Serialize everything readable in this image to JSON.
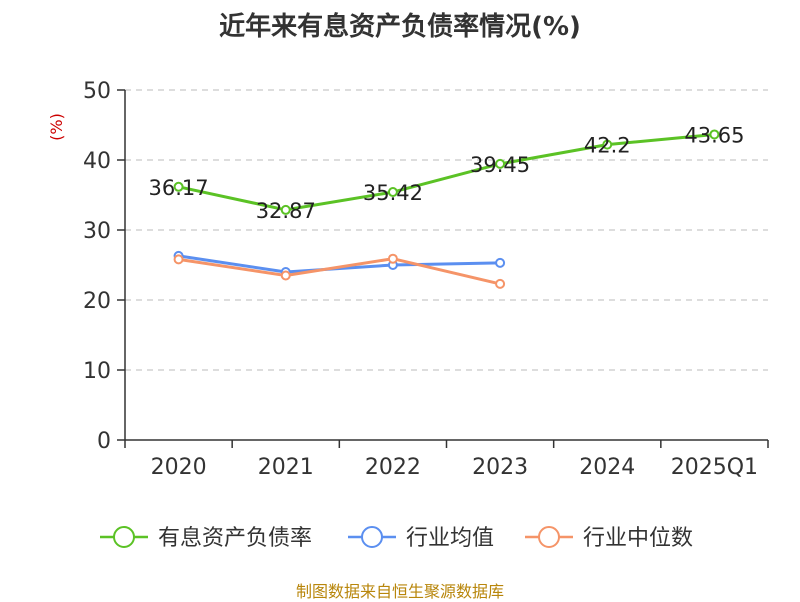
{
  "title": "近年来有息资产负债率情况(%)",
  "source": "制图数据来自恒生聚源数据库",
  "chart_data": {
    "type": "line",
    "title": "近年来有息资产负债率情况(%)",
    "ylabel": "(%)",
    "xlabel": "",
    "ylim": [
      0,
      50
    ],
    "yticks": [
      0,
      10,
      20,
      30,
      40,
      50
    ],
    "categories": [
      "2020",
      "2021",
      "2022",
      "2023",
      "2024",
      "2025Q1"
    ],
    "grid": true,
    "legend_position": "bottom",
    "series": [
      {
        "name": "有息资产负债率",
        "color": "#5bc225",
        "values": [
          36.17,
          32.87,
          35.42,
          39.45,
          42.2,
          43.65
        ],
        "labels": [
          "36.17",
          "32.87",
          "35.42",
          "39.45",
          "42.2",
          "43.65"
        ]
      },
      {
        "name": "行业均值",
        "color": "#5b8ff0",
        "values": [
          26.3,
          24.0,
          25.0,
          25.3,
          null,
          null
        ]
      },
      {
        "name": "行业中位数",
        "color": "#f59468",
        "values": [
          25.8,
          23.5,
          25.9,
          22.3,
          null,
          null
        ]
      }
    ]
  }
}
